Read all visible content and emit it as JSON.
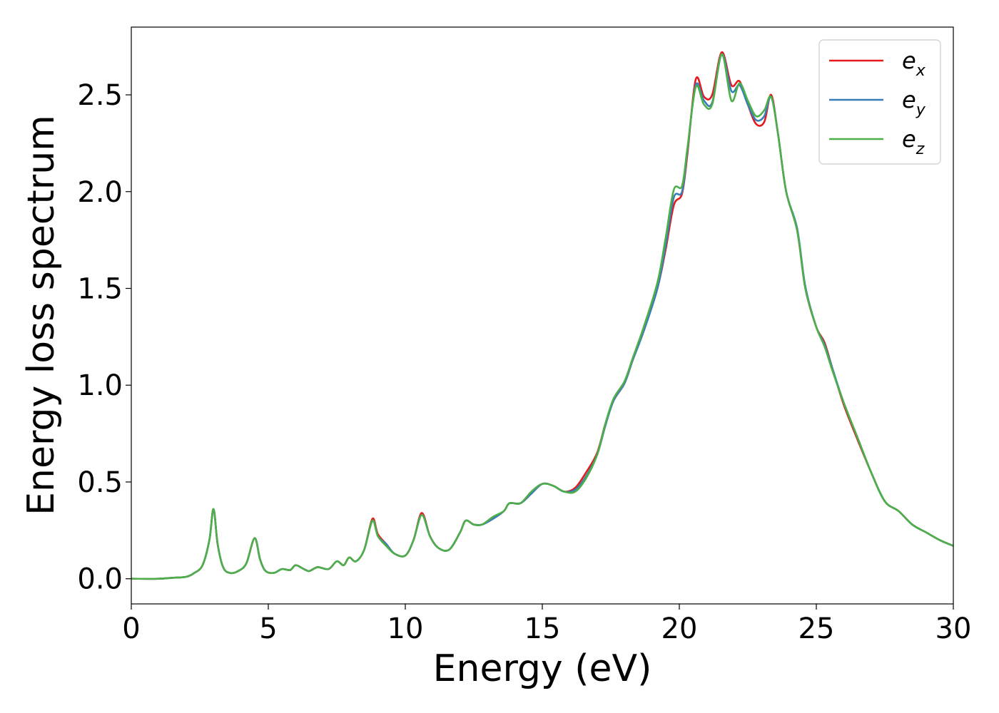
{
  "chart_data": {
    "type": "line",
    "title": "",
    "xlabel": "Energy (eV)",
    "ylabel": "Energy loss spectrum",
    "xlim": [
      0,
      30
    ],
    "ylim": [
      -0.13,
      2.85
    ],
    "xticks": [
      0,
      5,
      10,
      15,
      20,
      25,
      30
    ],
    "xtick_labels": [
      "0",
      "5",
      "10",
      "15",
      "20",
      "25",
      "30"
    ],
    "yticks": [
      0.0,
      0.5,
      1.0,
      1.5,
      2.0,
      2.5
    ],
    "ytick_labels": [
      "0.0",
      "0.5",
      "1.0",
      "1.5",
      "2.0",
      "2.5"
    ],
    "grid": false,
    "legend_position": "top-right",
    "series": [
      {
        "name": "e_x",
        "legend_base": "e",
        "legend_sub": "x",
        "color": "#e41a1c",
        "points": [
          [
            0,
            0.0
          ],
          [
            1.0,
            0.0
          ],
          [
            1.5,
            0.005
          ],
          [
            2.0,
            0.01
          ],
          [
            2.3,
            0.03
          ],
          [
            2.6,
            0.07
          ],
          [
            2.85,
            0.2
          ],
          [
            3.0,
            0.36
          ],
          [
            3.15,
            0.18
          ],
          [
            3.35,
            0.06
          ],
          [
            3.6,
            0.03
          ],
          [
            3.9,
            0.04
          ],
          [
            4.2,
            0.08
          ],
          [
            4.5,
            0.21
          ],
          [
            4.7,
            0.1
          ],
          [
            4.9,
            0.04
          ],
          [
            5.2,
            0.03
          ],
          [
            5.5,
            0.05
          ],
          [
            5.8,
            0.045
          ],
          [
            6.0,
            0.07
          ],
          [
            6.3,
            0.05
          ],
          [
            6.5,
            0.04
          ],
          [
            6.8,
            0.06
          ],
          [
            7.2,
            0.05
          ],
          [
            7.5,
            0.09
          ],
          [
            7.75,
            0.07
          ],
          [
            7.95,
            0.11
          ],
          [
            8.2,
            0.09
          ],
          [
            8.5,
            0.15
          ],
          [
            8.8,
            0.31
          ],
          [
            9.0,
            0.23
          ],
          [
            9.3,
            0.18
          ],
          [
            9.6,
            0.13
          ],
          [
            10.0,
            0.12
          ],
          [
            10.3,
            0.2
          ],
          [
            10.6,
            0.34
          ],
          [
            10.9,
            0.22
          ],
          [
            11.2,
            0.16
          ],
          [
            11.6,
            0.15
          ],
          [
            12.0,
            0.24
          ],
          [
            12.2,
            0.3
          ],
          [
            12.5,
            0.28
          ],
          [
            12.8,
            0.28
          ],
          [
            13.2,
            0.31
          ],
          [
            13.6,
            0.35
          ],
          [
            13.8,
            0.39
          ],
          [
            14.2,
            0.39
          ],
          [
            14.6,
            0.44
          ],
          [
            15.0,
            0.49
          ],
          [
            15.4,
            0.48
          ],
          [
            15.8,
            0.45
          ],
          [
            16.2,
            0.47
          ],
          [
            16.6,
            0.55
          ],
          [
            17.0,
            0.65
          ],
          [
            17.3,
            0.8
          ],
          [
            17.6,
            0.92
          ],
          [
            18.0,
            1.01
          ],
          [
            18.3,
            1.13
          ],
          [
            18.7,
            1.28
          ],
          [
            19.2,
            1.5
          ],
          [
            19.5,
            1.7
          ],
          [
            19.8,
            1.93
          ],
          [
            20.1,
            1.99
          ],
          [
            20.3,
            2.2
          ],
          [
            20.6,
            2.58
          ],
          [
            20.9,
            2.49
          ],
          [
            21.2,
            2.5
          ],
          [
            21.55,
            2.72
          ],
          [
            21.9,
            2.55
          ],
          [
            22.2,
            2.57
          ],
          [
            22.5,
            2.45
          ],
          [
            22.8,
            2.35
          ],
          [
            23.1,
            2.36
          ],
          [
            23.35,
            2.5
          ],
          [
            23.6,
            2.3
          ],
          [
            23.9,
            2.0
          ],
          [
            24.3,
            1.8
          ],
          [
            24.6,
            1.5
          ],
          [
            25.0,
            1.3
          ],
          [
            25.3,
            1.22
          ],
          [
            25.6,
            1.08
          ],
          [
            26.0,
            0.9
          ],
          [
            26.5,
            0.72
          ],
          [
            27.0,
            0.55
          ],
          [
            27.5,
            0.4
          ],
          [
            28.0,
            0.35
          ],
          [
            28.5,
            0.28
          ],
          [
            29.0,
            0.24
          ],
          [
            29.5,
            0.2
          ],
          [
            30.0,
            0.17
          ]
        ]
      },
      {
        "name": "e_y",
        "legend_base": "e",
        "legend_sub": "y",
        "color": "#377eb8",
        "points": [
          [
            0,
            0.0
          ],
          [
            1.0,
            0.0
          ],
          [
            1.5,
            0.005
          ],
          [
            2.0,
            0.01
          ],
          [
            2.3,
            0.03
          ],
          [
            2.6,
            0.07
          ],
          [
            2.85,
            0.2
          ],
          [
            3.0,
            0.36
          ],
          [
            3.15,
            0.18
          ],
          [
            3.35,
            0.06
          ],
          [
            3.6,
            0.03
          ],
          [
            3.9,
            0.04
          ],
          [
            4.2,
            0.08
          ],
          [
            4.5,
            0.21
          ],
          [
            4.7,
            0.1
          ],
          [
            4.9,
            0.04
          ],
          [
            5.2,
            0.03
          ],
          [
            5.5,
            0.05
          ],
          [
            5.8,
            0.045
          ],
          [
            6.0,
            0.07
          ],
          [
            6.3,
            0.05
          ],
          [
            6.5,
            0.04
          ],
          [
            6.8,
            0.06
          ],
          [
            7.2,
            0.05
          ],
          [
            7.5,
            0.09
          ],
          [
            7.75,
            0.07
          ],
          [
            7.95,
            0.11
          ],
          [
            8.2,
            0.09
          ],
          [
            8.5,
            0.15
          ],
          [
            8.8,
            0.3
          ],
          [
            9.0,
            0.22
          ],
          [
            9.3,
            0.18
          ],
          [
            9.6,
            0.13
          ],
          [
            10.0,
            0.12
          ],
          [
            10.3,
            0.2
          ],
          [
            10.6,
            0.33
          ],
          [
            10.9,
            0.22
          ],
          [
            11.2,
            0.16
          ],
          [
            11.6,
            0.15
          ],
          [
            12.0,
            0.24
          ],
          [
            12.2,
            0.3
          ],
          [
            12.5,
            0.28
          ],
          [
            12.8,
            0.28
          ],
          [
            13.2,
            0.31
          ],
          [
            13.6,
            0.35
          ],
          [
            13.8,
            0.39
          ],
          [
            14.2,
            0.39
          ],
          [
            14.6,
            0.44
          ],
          [
            15.0,
            0.49
          ],
          [
            15.4,
            0.48
          ],
          [
            15.8,
            0.45
          ],
          [
            16.2,
            0.46
          ],
          [
            16.6,
            0.53
          ],
          [
            17.0,
            0.64
          ],
          [
            17.3,
            0.79
          ],
          [
            17.6,
            0.92
          ],
          [
            18.0,
            1.01
          ],
          [
            18.3,
            1.13
          ],
          [
            18.7,
            1.28
          ],
          [
            19.2,
            1.5
          ],
          [
            19.5,
            1.72
          ],
          [
            19.8,
            1.97
          ],
          [
            20.1,
            2.0
          ],
          [
            20.3,
            2.22
          ],
          [
            20.6,
            2.55
          ],
          [
            20.9,
            2.47
          ],
          [
            21.2,
            2.46
          ],
          [
            21.55,
            2.71
          ],
          [
            21.9,
            2.52
          ],
          [
            22.2,
            2.55
          ],
          [
            22.5,
            2.45
          ],
          [
            22.8,
            2.37
          ],
          [
            23.1,
            2.39
          ],
          [
            23.35,
            2.49
          ],
          [
            23.6,
            2.3
          ],
          [
            23.9,
            2.0
          ],
          [
            24.3,
            1.81
          ],
          [
            24.6,
            1.51
          ],
          [
            25.0,
            1.3
          ],
          [
            25.3,
            1.21
          ],
          [
            25.6,
            1.08
          ],
          [
            26.0,
            0.91
          ],
          [
            26.5,
            0.73
          ],
          [
            27.0,
            0.55
          ],
          [
            27.5,
            0.4
          ],
          [
            28.0,
            0.35
          ],
          [
            28.5,
            0.28
          ],
          [
            29.0,
            0.24
          ],
          [
            29.5,
            0.2
          ],
          [
            30.0,
            0.17
          ]
        ]
      },
      {
        "name": "e_z",
        "legend_base": "e",
        "legend_sub": "z",
        "color": "#4daf4a",
        "points": [
          [
            0,
            0.0
          ],
          [
            1.0,
            0.0
          ],
          [
            1.5,
            0.005
          ],
          [
            2.0,
            0.01
          ],
          [
            2.3,
            0.03
          ],
          [
            2.6,
            0.07
          ],
          [
            2.85,
            0.2
          ],
          [
            3.0,
            0.36
          ],
          [
            3.15,
            0.18
          ],
          [
            3.35,
            0.06
          ],
          [
            3.6,
            0.03
          ],
          [
            3.9,
            0.04
          ],
          [
            4.2,
            0.08
          ],
          [
            4.5,
            0.21
          ],
          [
            4.7,
            0.1
          ],
          [
            4.9,
            0.04
          ],
          [
            5.2,
            0.03
          ],
          [
            5.5,
            0.05
          ],
          [
            5.8,
            0.045
          ],
          [
            6.0,
            0.07
          ],
          [
            6.3,
            0.05
          ],
          [
            6.5,
            0.04
          ],
          [
            6.8,
            0.06
          ],
          [
            7.2,
            0.05
          ],
          [
            7.5,
            0.09
          ],
          [
            7.75,
            0.07
          ],
          [
            7.95,
            0.11
          ],
          [
            8.2,
            0.09
          ],
          [
            8.5,
            0.15
          ],
          [
            8.8,
            0.3
          ],
          [
            9.0,
            0.22
          ],
          [
            9.3,
            0.17
          ],
          [
            9.6,
            0.13
          ],
          [
            10.0,
            0.12
          ],
          [
            10.3,
            0.2
          ],
          [
            10.6,
            0.33
          ],
          [
            10.9,
            0.22
          ],
          [
            11.2,
            0.16
          ],
          [
            11.6,
            0.15
          ],
          [
            12.0,
            0.24
          ],
          [
            12.2,
            0.3
          ],
          [
            12.5,
            0.28
          ],
          [
            12.8,
            0.28
          ],
          [
            13.2,
            0.32
          ],
          [
            13.6,
            0.35
          ],
          [
            13.8,
            0.39
          ],
          [
            14.2,
            0.39
          ],
          [
            14.6,
            0.45
          ],
          [
            15.0,
            0.49
          ],
          [
            15.4,
            0.48
          ],
          [
            15.8,
            0.45
          ],
          [
            16.2,
            0.45
          ],
          [
            16.6,
            0.52
          ],
          [
            17.0,
            0.64
          ],
          [
            17.3,
            0.8
          ],
          [
            17.6,
            0.93
          ],
          [
            18.0,
            1.02
          ],
          [
            18.3,
            1.14
          ],
          [
            18.7,
            1.3
          ],
          [
            19.2,
            1.53
          ],
          [
            19.5,
            1.76
          ],
          [
            19.8,
            2.01
          ],
          [
            20.1,
            2.03
          ],
          [
            20.3,
            2.23
          ],
          [
            20.6,
            2.54
          ],
          [
            20.9,
            2.45
          ],
          [
            21.2,
            2.45
          ],
          [
            21.55,
            2.71
          ],
          [
            21.9,
            2.47
          ],
          [
            22.2,
            2.56
          ],
          [
            22.5,
            2.47
          ],
          [
            22.8,
            2.39
          ],
          [
            23.1,
            2.42
          ],
          [
            23.35,
            2.49
          ],
          [
            23.6,
            2.3
          ],
          [
            23.9,
            2.0
          ],
          [
            24.3,
            1.8
          ],
          [
            24.6,
            1.5
          ],
          [
            25.0,
            1.3
          ],
          [
            25.3,
            1.2
          ],
          [
            25.6,
            1.07
          ],
          [
            26.0,
            0.91
          ],
          [
            26.5,
            0.73
          ],
          [
            27.0,
            0.55
          ],
          [
            27.5,
            0.4
          ],
          [
            28.0,
            0.35
          ],
          [
            28.5,
            0.28
          ],
          [
            29.0,
            0.24
          ],
          [
            29.5,
            0.2
          ],
          [
            30.0,
            0.17
          ]
        ]
      }
    ]
  }
}
